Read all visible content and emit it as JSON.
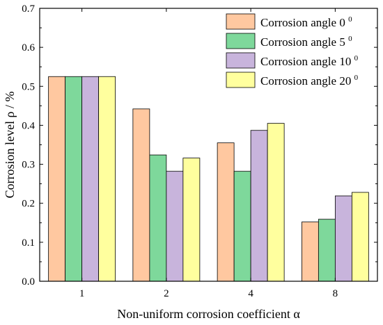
{
  "chart_data": {
    "type": "bar",
    "categories": [
      "1",
      "2",
      "4",
      "8"
    ],
    "series": [
      {
        "name": "Corrosion angle 0",
        "sup": "0",
        "color": "#FFC8A0",
        "values": [
          0.525,
          0.442,
          0.355,
          0.152
        ]
      },
      {
        "name": "Corrosion angle 5",
        "sup": "0",
        "color": "#7ED89B",
        "values": [
          0.525,
          0.324,
          0.282,
          0.159
        ]
      },
      {
        "name": "Corrosion angle 10",
        "sup": "0",
        "color": "#C8B4DC",
        "values": [
          0.525,
          0.282,
          0.387,
          0.219
        ]
      },
      {
        "name": "Corrosion angle 20",
        "sup": "0",
        "color": "#FFFF9E",
        "values": [
          0.525,
          0.316,
          0.405,
          0.228
        ]
      }
    ],
    "xlabel": "Non-uniform corrosion coefficient α",
    "ylabel": "Corrosion level ρ / %",
    "ylim": [
      0,
      0.7
    ],
    "yticks": [
      "0.0",
      "0.1",
      "0.2",
      "0.3",
      "0.4",
      "0.5",
      "0.6",
      "0.7"
    ],
    "legend_position": "top-right",
    "grid": false
  }
}
